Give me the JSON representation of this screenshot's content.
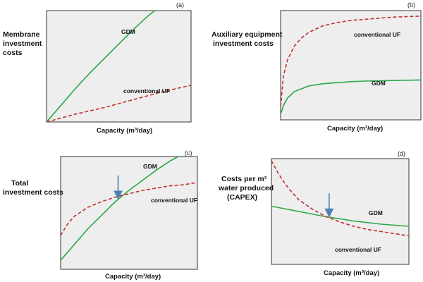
{
  "colors": {
    "gdm": "#2aa84a",
    "conventional_uf": "#c0312b",
    "arrow": "#4f7fb5",
    "panel_bg": "#eeeeee"
  },
  "chart_data": [
    {
      "panel": "(a)",
      "type": "line",
      "ylabel": [
        "Membrane",
        "investment",
        "costs"
      ],
      "xlabel": "Capacity (m³/day)",
      "xlim": [
        0,
        1
      ],
      "ylim": [
        0,
        1
      ],
      "series": [
        {
          "name": "GDM",
          "style": "solid",
          "color": "#2aa84a",
          "x": [
            0,
            0.1,
            0.2,
            0.3,
            0.4,
            0.5,
            0.6,
            0.7,
            0.75
          ],
          "y": [
            0,
            0.15,
            0.3,
            0.44,
            0.57,
            0.7,
            0.83,
            0.95,
            1.0
          ]
        },
        {
          "name": "conventional UF",
          "style": "dashed",
          "color": "#c0312b",
          "x": [
            0,
            0.2,
            0.4,
            0.6,
            0.8,
            1.0
          ],
          "y": [
            0,
            0.07,
            0.13,
            0.2,
            0.27,
            0.33
          ]
        }
      ],
      "annotations": []
    },
    {
      "panel": "(b)",
      "type": "line",
      "ylabel": [
        "Auxiliary equipment",
        "investment costs"
      ],
      "xlabel": "Capacity (m³/day)",
      "xlim": [
        0,
        1
      ],
      "ylim": [
        0,
        1
      ],
      "series": [
        {
          "name": "GDM",
          "style": "solid",
          "color": "#2aa84a",
          "x": [
            0,
            0.02,
            0.05,
            0.1,
            0.2,
            0.3,
            0.4,
            0.5,
            0.6,
            0.8,
            1.0
          ],
          "y": [
            0.05,
            0.13,
            0.2,
            0.26,
            0.31,
            0.33,
            0.34,
            0.35,
            0.355,
            0.36,
            0.365
          ]
        },
        {
          "name": "conventional UF",
          "style": "dashed",
          "color": "#c0312b",
          "x": [
            0,
            0.02,
            0.05,
            0.1,
            0.15,
            0.2,
            0.3,
            0.4,
            0.5,
            0.6,
            0.8,
            1.0
          ],
          "y": [
            0.12,
            0.4,
            0.55,
            0.68,
            0.75,
            0.8,
            0.86,
            0.89,
            0.91,
            0.92,
            0.94,
            0.95
          ]
        }
      ],
      "annotations": []
    },
    {
      "panel": "(c)",
      "type": "line",
      "ylabel": [
        "Total",
        "investment costs"
      ],
      "xlabel": "Capacity (m³/day)",
      "xlim": [
        0,
        1
      ],
      "ylim": [
        0,
        1
      ],
      "series": [
        {
          "name": "GDM",
          "style": "solid",
          "color": "#2aa84a",
          "x": [
            0,
            0.1,
            0.2,
            0.3,
            0.4,
            0.5,
            0.6,
            0.7,
            0.8,
            0.86
          ],
          "y": [
            0.08,
            0.22,
            0.36,
            0.48,
            0.6,
            0.7,
            0.79,
            0.88,
            0.96,
            1.0
          ]
        },
        {
          "name": "conventional UF",
          "style": "dashed",
          "color": "#c0312b",
          "x": [
            0,
            0.05,
            0.1,
            0.2,
            0.3,
            0.4,
            0.5,
            0.6,
            0.7,
            0.8,
            0.9,
            1.0
          ],
          "y": [
            0.3,
            0.4,
            0.47,
            0.55,
            0.6,
            0.64,
            0.67,
            0.7,
            0.72,
            0.74,
            0.75,
            0.77
          ]
        }
      ],
      "annotations": [
        {
          "kind": "arrow",
          "x": 0.42,
          "note": "intersection"
        }
      ]
    },
    {
      "panel": "(d)",
      "type": "line",
      "ylabel": [
        "Costs per m³",
        "water produced",
        "(CAPEX)"
      ],
      "xlabel": "Capacity (m³/day)",
      "xlim": [
        0,
        1
      ],
      "ylim": [
        0,
        1
      ],
      "series": [
        {
          "name": "GDM",
          "style": "solid",
          "color": "#2aa84a",
          "x": [
            0,
            0.2,
            0.4,
            0.6,
            0.8,
            1.0
          ],
          "y": [
            0.55,
            0.5,
            0.45,
            0.41,
            0.38,
            0.36
          ]
        },
        {
          "name": "conventional UF",
          "style": "dashed",
          "color": "#c0312b",
          "x": [
            0,
            0.05,
            0.1,
            0.15,
            0.2,
            0.3,
            0.4,
            0.5,
            0.6,
            0.7,
            0.8,
            0.9,
            1.0
          ],
          "y": [
            0.98,
            0.86,
            0.76,
            0.68,
            0.61,
            0.52,
            0.45,
            0.4,
            0.36,
            0.33,
            0.31,
            0.29,
            0.27
          ]
        }
      ],
      "annotations": [
        {
          "kind": "arrow",
          "x": 0.42,
          "note": "intersection"
        }
      ]
    }
  ]
}
